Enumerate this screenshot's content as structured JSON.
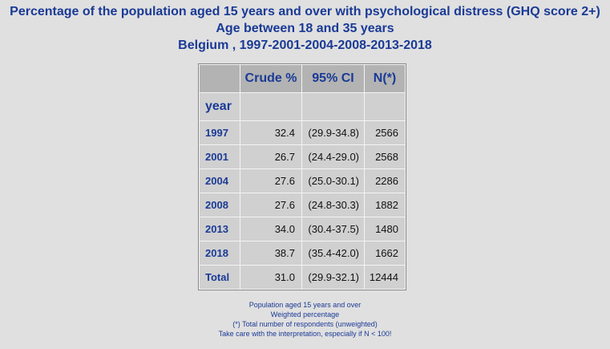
{
  "titles": {
    "line1": "Percentage of the population aged 15 years and over with psychological distress (GHQ score 2+)",
    "line2": "Age between 18 and 35 years",
    "line3": "Belgium , 1997-2001-2004-2008-2013-2018"
  },
  "table": {
    "headers": {
      "crude": "Crude %",
      "ci": "95% CI",
      "n": "N(*)",
      "row_label": "year"
    },
    "rows": [
      {
        "year": "1997",
        "crude": "32.4",
        "ci": "(29.9-34.8)",
        "n": "2566"
      },
      {
        "year": "2001",
        "crude": "26.7",
        "ci": "(24.4-29.0)",
        "n": "2568"
      },
      {
        "year": "2004",
        "crude": "27.6",
        "ci": "(25.0-30.1)",
        "n": "2286"
      },
      {
        "year": "2008",
        "crude": "27.6",
        "ci": "(24.8-30.3)",
        "n": "1882"
      },
      {
        "year": "2013",
        "crude": "34.0",
        "ci": "(30.4-37.5)",
        "n": "1480"
      },
      {
        "year": "2018",
        "crude": "38.7",
        "ci": "(35.4-42.0)",
        "n": "1662"
      },
      {
        "year": "Total",
        "crude": "31.0",
        "ci": "(29.9-32.1)",
        "n": "12444"
      }
    ]
  },
  "footnotes": [
    "Population aged 15 years and over",
    "Weighted percentage",
    "(*) Total number of respondents (unweighted)",
    "Take care with the interpretation, especially if N < 100!"
  ]
}
